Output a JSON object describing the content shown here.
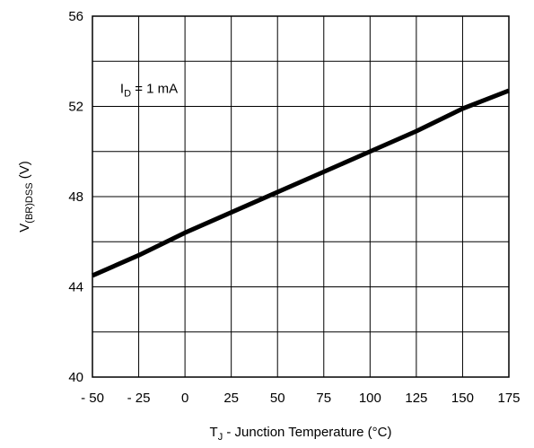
{
  "chart_data": {
    "type": "line",
    "title": "",
    "xlabel": {
      "main": "T",
      "sub": "J",
      "rest": "  -   Junction Temperature (°C)"
    },
    "ylabel": {
      "main": "V",
      "sub": "(BR)DSS",
      "rest": " (V)"
    },
    "xlim": [
      -50,
      175
    ],
    "ylim": [
      40,
      56
    ],
    "x_ticks": [
      -50,
      -25,
      0,
      25,
      50,
      75,
      100,
      125,
      150,
      175
    ],
    "x_tick_labels": [
      "- 50",
      "- 25",
      "0",
      "25",
      "50",
      "75",
      "100",
      "125",
      "150",
      "175"
    ],
    "y_ticks": [
      40,
      44,
      48,
      52,
      56
    ],
    "y_tick_labels": [
      "40",
      "44",
      "48",
      "52",
      "56"
    ],
    "x_minor_grid": [
      -50,
      -25,
      0,
      25,
      50,
      75,
      100,
      125,
      150,
      175
    ],
    "y_minor_grid": [
      40,
      42,
      44,
      46,
      48,
      50,
      52,
      54,
      56
    ],
    "grid": true,
    "annotation": {
      "main": "I",
      "sub": "D",
      "rest": " = 1 mA",
      "x": -35,
      "y": 52.6
    },
    "series": [
      {
        "x": [
          -50,
          -25,
          0,
          25,
          50,
          75,
          100,
          125,
          150,
          175
        ],
        "values": [
          44.5,
          45.4,
          46.4,
          47.3,
          48.2,
          49.1,
          50.0,
          50.9,
          51.9,
          52.7
        ]
      }
    ]
  }
}
